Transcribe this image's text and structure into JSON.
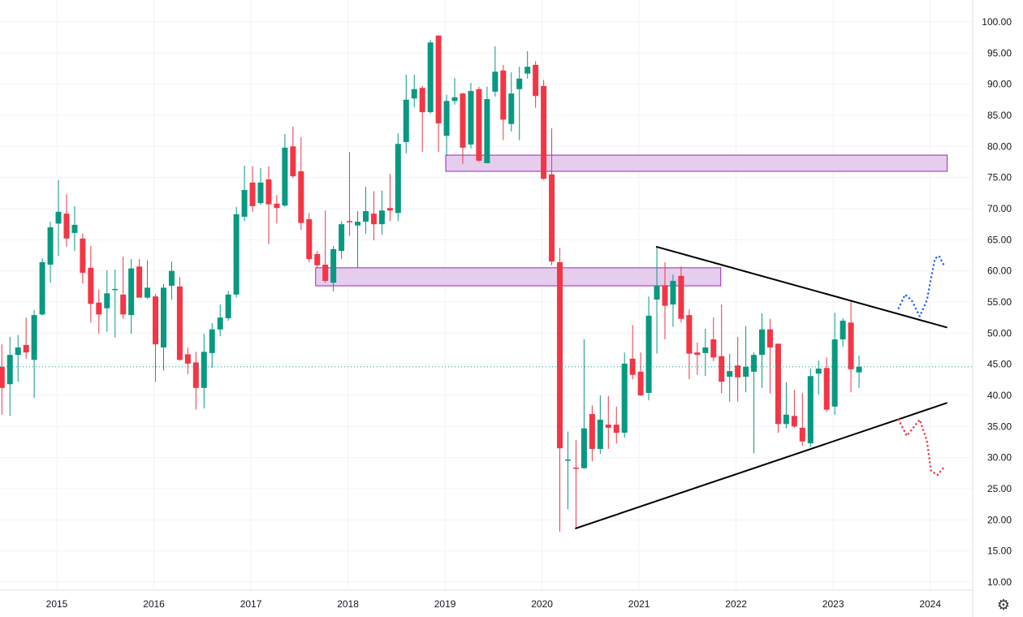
{
  "chart_data": {
    "type": "candlestick",
    "title": "",
    "interval": "monthly",
    "start_month": "2014-06",
    "colors": {
      "up": "#089981",
      "down": "#f23645",
      "zone_fill": "#e6cdee",
      "zone_border": "#9c27b0",
      "trendline": "#000000",
      "bull_projection": "#2962ff",
      "bear_projection": "#f23645",
      "grid": "#f0f3fa"
    },
    "ylim": [
      9,
      102
    ],
    "y_ticks": [
      "100.00",
      "95.00",
      "90.00",
      "85.00",
      "80.00",
      "75.00",
      "70.00",
      "65.00",
      "60.00",
      "55.00",
      "50.00",
      "45.00",
      "40.00",
      "35.00",
      "30.00",
      "25.00",
      "20.00",
      "15.00",
      "10.00"
    ],
    "x_ticks": [
      "2015",
      "2016",
      "2017",
      "2018",
      "2019",
      "2020",
      "2021",
      "2022",
      "2023",
      "2024"
    ],
    "last_price": 44.6,
    "ohlc": [
      [
        44.6,
        48.2,
        36.9,
        41.2
      ],
      [
        41.8,
        49.4,
        36.7,
        46.5
      ],
      [
        46.5,
        49.7,
        42.2,
        47.7
      ],
      [
        48.1,
        52.5,
        45.9,
        46.9
      ],
      [
        45.7,
        53.7,
        39.6,
        52.9
      ],
      [
        53.0,
        62.0,
        52.8,
        61.4
      ],
      [
        61.0,
        67.9,
        58.1,
        67.0
      ],
      [
        67.6,
        74.6,
        62.4,
        69.5
      ],
      [
        69.2,
        72.3,
        63.9,
        65.2
      ],
      [
        66.1,
        70.4,
        63.2,
        67.4
      ],
      [
        65.2,
        66.0,
        58.0,
        59.7
      ],
      [
        60.5,
        64.0,
        51.7,
        54.7
      ],
      [
        54.9,
        57.0,
        49.9,
        53.0
      ],
      [
        54.0,
        60.1,
        50.2,
        56.4
      ],
      [
        57.0,
        60.2,
        49.3,
        57.1
      ],
      [
        56.2,
        62.3,
        52.3,
        53.0
      ],
      [
        52.9,
        61.9,
        49.9,
        60.4
      ],
      [
        60.7,
        61.9,
        55.7,
        55.7
      ],
      [
        55.7,
        61.7,
        55.5,
        57.3
      ],
      [
        55.9,
        56.3,
        42.2,
        48.2
      ],
      [
        47.7,
        57.9,
        44.0,
        57.3
      ],
      [
        57.6,
        61.5,
        55.4,
        60.0
      ],
      [
        57.5,
        59.0,
        45.6,
        45.7
      ],
      [
        46.6,
        47.7,
        43.4,
        45.1
      ],
      [
        45.3,
        47.0,
        37.7,
        41.2
      ],
      [
        41.2,
        49.9,
        37.9,
        47.0
      ],
      [
        46.8,
        51.6,
        44.4,
        50.6
      ],
      [
        50.6,
        54.6,
        49.5,
        52.5
      ],
      [
        52.4,
        56.8,
        52.0,
        56.2
      ],
      [
        56.2,
        70.3,
        55.7,
        69.1
      ],
      [
        68.7,
        76.9,
        68.0,
        73.0
      ],
      [
        74.2,
        76.8,
        69.5,
        70.4
      ],
      [
        70.9,
        76.5,
        70.6,
        74.2
      ],
      [
        74.7,
        76.8,
        64.3,
        70.7
      ],
      [
        70.8,
        72.2,
        67.6,
        70.1
      ],
      [
        70.5,
        82.0,
        70.3,
        79.8
      ],
      [
        80.0,
        83.2,
        74.9,
        75.2
      ],
      [
        76.0,
        81.5,
        66.6,
        67.7
      ],
      [
        68.3,
        69.3,
        61.4,
        61.9
      ],
      [
        62.7,
        63.2,
        60.5,
        60.9
      ],
      [
        61.0,
        69.7,
        58.1,
        58.4
      ],
      [
        58.1,
        64.0,
        56.7,
        63.5
      ],
      [
        63.2,
        68.0,
        61.9,
        67.5
      ],
      [
        68.0,
        79.1,
        65.6,
        67.8
      ],
      [
        67.3,
        69.6,
        60.5,
        67.9
      ],
      [
        67.9,
        73.5,
        66.0,
        69.6
      ],
      [
        69.2,
        72.8,
        64.9,
        67.5
      ],
      [
        67.5,
        72.9,
        65.8,
        69.7
      ],
      [
        70.1,
        75.6,
        68.0,
        69.7
      ],
      [
        69.3,
        82.1,
        68.0,
        80.4
      ],
      [
        80.7,
        91.5,
        78.9,
        87.5
      ],
      [
        87.7,
        91.5,
        86.3,
        89.2
      ],
      [
        89.4,
        89.7,
        79.1,
        85.5
      ],
      [
        85.5,
        97.1,
        85.3,
        96.7
      ],
      [
        97.8,
        97.9,
        79.1,
        83.7
      ],
      [
        81.7,
        88.3,
        78.5,
        87.3
      ],
      [
        87.3,
        91.0,
        86.7,
        87.9
      ],
      [
        88.5,
        88.6,
        77.2,
        79.8
      ],
      [
        80.3,
        90.2,
        79.7,
        88.9
      ],
      [
        89.2,
        89.6,
        77.5,
        77.7
      ],
      [
        77.3,
        89.6,
        77.3,
        87.6
      ],
      [
        88.8,
        96.1,
        88.0,
        92.0
      ],
      [
        92.2,
        93.1,
        81.0,
        84.3
      ],
      [
        83.6,
        91.9,
        82.4,
        88.5
      ],
      [
        89.2,
        92.8,
        81.0,
        90.9
      ],
      [
        91.7,
        95.3,
        90.9,
        92.8
      ],
      [
        93.1,
        93.7,
        86.2,
        88.1
      ],
      [
        89.7,
        90.7,
        74.6,
        74.8
      ],
      [
        75.5,
        82.9,
        60.9,
        61.5
      ],
      [
        61.4,
        63.7,
        18.1,
        31.5
      ],
      [
        29.5,
        34.2,
        21.7,
        29.7
      ],
      [
        28.4,
        32.8,
        18.5,
        28.2
      ],
      [
        28.3,
        49.0,
        28.2,
        34.7
      ],
      [
        37.0,
        38.4,
        29.4,
        31.4
      ],
      [
        31.4,
        40.0,
        30.6,
        36.1
      ],
      [
        35.3,
        39.9,
        31.4,
        34.8
      ],
      [
        35.3,
        38.2,
        32.3,
        34.0
      ],
      [
        34.0,
        46.9,
        33.2,
        45.1
      ],
      [
        45.9,
        51.3,
        42.6,
        43.3
      ],
      [
        43.8,
        46.9,
        39.9,
        40.0
      ],
      [
        40.4,
        55.9,
        39.2,
        52.8
      ],
      [
        55.4,
        63.9,
        46.7,
        57.6
      ],
      [
        57.7,
        61.4,
        49.0,
        54.4
      ],
      [
        54.6,
        59.4,
        51.0,
        58.4
      ],
      [
        59.2,
        60.7,
        51.7,
        52.3
      ],
      [
        52.9,
        53.8,
        42.6,
        46.7
      ],
      [
        46.9,
        48.5,
        43.3,
        46.5
      ],
      [
        46.8,
        50.7,
        43.1,
        47.7
      ],
      [
        49.0,
        52.5,
        45.5,
        46.1
      ],
      [
        46.3,
        54.6,
        40.3,
        42.2
      ],
      [
        43.0,
        46.7,
        39.0,
        43.9
      ],
      [
        44.8,
        49.4,
        39.0,
        42.9
      ],
      [
        43.0,
        51.1,
        40.5,
        44.6
      ],
      [
        43.8,
        46.9,
        30.7,
        46.5
      ],
      [
        46.5,
        53.2,
        41.2,
        50.6
      ],
      [
        50.6,
        52.3,
        40.3,
        47.7
      ],
      [
        48.3,
        48.3,
        34.0,
        35.4
      ],
      [
        35.4,
        42.1,
        34.7,
        36.9
      ],
      [
        36.7,
        40.9,
        34.8,
        35.0
      ],
      [
        34.8,
        40.4,
        31.9,
        32.6
      ],
      [
        32.3,
        44.3,
        31.7,
        43.1
      ],
      [
        43.5,
        45.6,
        40.1,
        44.3
      ],
      [
        44.4,
        46.1,
        37.4,
        37.7
      ],
      [
        38.2,
        53.3,
        36.9,
        49.0
      ],
      [
        49.0,
        52.4,
        47.8,
        52.0
      ],
      [
        51.7,
        55.3,
        40.5,
        44.2
      ],
      [
        43.7,
        46.4,
        41.2,
        44.6
      ]
    ],
    "zones": [
      {
        "name": "upper-supply-zone",
        "from_month": 47.9,
        "to_month": 109.9,
        "low": 76.0,
        "high": 78.6
      },
      {
        "name": "middle-zone",
        "from_month": 31.8,
        "to_month": 81.9,
        "low": 57.6,
        "high": 60.5
      }
    ],
    "trendlines": [
      {
        "name": "descending-resistance",
        "points": [
          [
            73.9,
            63.9
          ],
          [
            109.9,
            50.9
          ]
        ]
      },
      {
        "name": "ascending-support",
        "points": [
          [
            63.9,
            18.6
          ],
          [
            109.9,
            38.8
          ]
        ]
      }
    ],
    "projections": [
      {
        "name": "bullish-breakout-path",
        "color_key": "bull_projection",
        "points": [
          [
            103.9,
            54.0
          ],
          [
            104.7,
            56.2
          ],
          [
            105.5,
            55.3
          ],
          [
            106.5,
            52.7
          ],
          [
            107.4,
            55.3
          ],
          [
            107.9,
            58.8
          ],
          [
            108.4,
            62.0
          ],
          [
            108.9,
            62.4
          ],
          [
            109.5,
            60.9
          ]
        ]
      },
      {
        "name": "bearish-breakdown-path",
        "color_key": "bear_projection",
        "points": [
          [
            103.9,
            36.1
          ],
          [
            104.9,
            33.5
          ],
          [
            106.5,
            36.1
          ],
          [
            107.4,
            32.7
          ],
          [
            107.9,
            27.9
          ],
          [
            108.7,
            27.2
          ],
          [
            109.4,
            28.3
          ]
        ]
      }
    ]
  },
  "ui": {
    "settings_icon": "gear-icon"
  }
}
